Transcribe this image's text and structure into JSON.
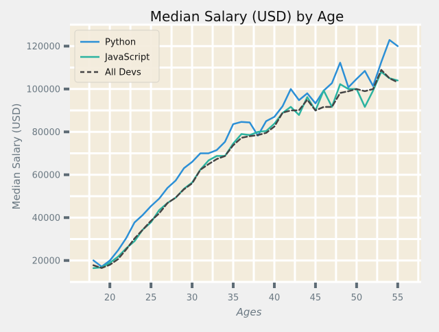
{
  "chart_data": {
    "type": "line",
    "title": "Median Salary (USD) by Age",
    "xlabel": "Ages",
    "ylabel": "Median Salary (USD)",
    "x": [
      18,
      19,
      20,
      21,
      22,
      23,
      24,
      25,
      26,
      27,
      28,
      29,
      30,
      31,
      32,
      33,
      34,
      35,
      36,
      37,
      38,
      39,
      40,
      41,
      42,
      43,
      44,
      45,
      46,
      47,
      48,
      49,
      50,
      51,
      52,
      53,
      54,
      55
    ],
    "series": [
      {
        "name": "Python",
        "color": "#2b8fd6",
        "dashed": false,
        "values": [
          20046,
          17100,
          20000,
          24744,
          30500,
          37732,
          41247,
          45372,
          48876,
          53850,
          57287,
          63016,
          65998,
          70003,
          70000,
          71496,
          75370,
          83640,
          84666,
          84392,
          78254,
          85000,
          87038,
          91991,
          100000,
          94796,
          97962,
          93302,
          99240,
          102736,
          112285,
          100771,
          104708,
          108423,
          101407,
          112542,
          122870,
          120000
        ]
      },
      {
        "name": "JavaScript",
        "color": "#2bb3a0",
        "dashed": false,
        "values": [
          16446,
          16791,
          18942,
          21780,
          25704,
          29000,
          34372,
          37810,
          43515,
          46823,
          49293,
          53437,
          56373,
          62375,
          66674,
          68745,
          68746,
          74583,
          79000,
          78508,
          79996,
          80403,
          83820,
          88833,
          91660,
          87892,
          96243,
          90000,
          99313,
          91660,
          102264,
          100000,
          100000,
          91660,
          99240,
          108000,
          105000,
          104000
        ]
      },
      {
        "name": "All Devs",
        "color": "#444444",
        "dashed": true,
        "values": [
          17784,
          16500,
          18012,
          20628,
          25206,
          30252,
          34368,
          38496,
          42000,
          46752,
          49320,
          53200,
          56000,
          62316,
          64928,
          67317,
          68748,
          73752,
          77232,
          78000,
          78508,
          79536,
          82488,
          88935,
          90000,
          90056,
          95000,
          90000,
          91633,
          91660,
          98150,
          98964,
          100000,
          98988,
          100000,
          108923,
          105000,
          103117
        ]
      }
    ],
    "xlim": [
      15.15,
      57.85
    ],
    "ylim": [
      10000,
      130000
    ],
    "xticks": [
      20,
      25,
      30,
      35,
      40,
      45,
      50,
      55
    ],
    "yticks": [
      20000,
      40000,
      60000,
      80000,
      100000,
      120000
    ],
    "grid": true,
    "legend_position": "top-left",
    "plot_background": "#f3ecdc",
    "figure_background": "#f0f0f0"
  }
}
